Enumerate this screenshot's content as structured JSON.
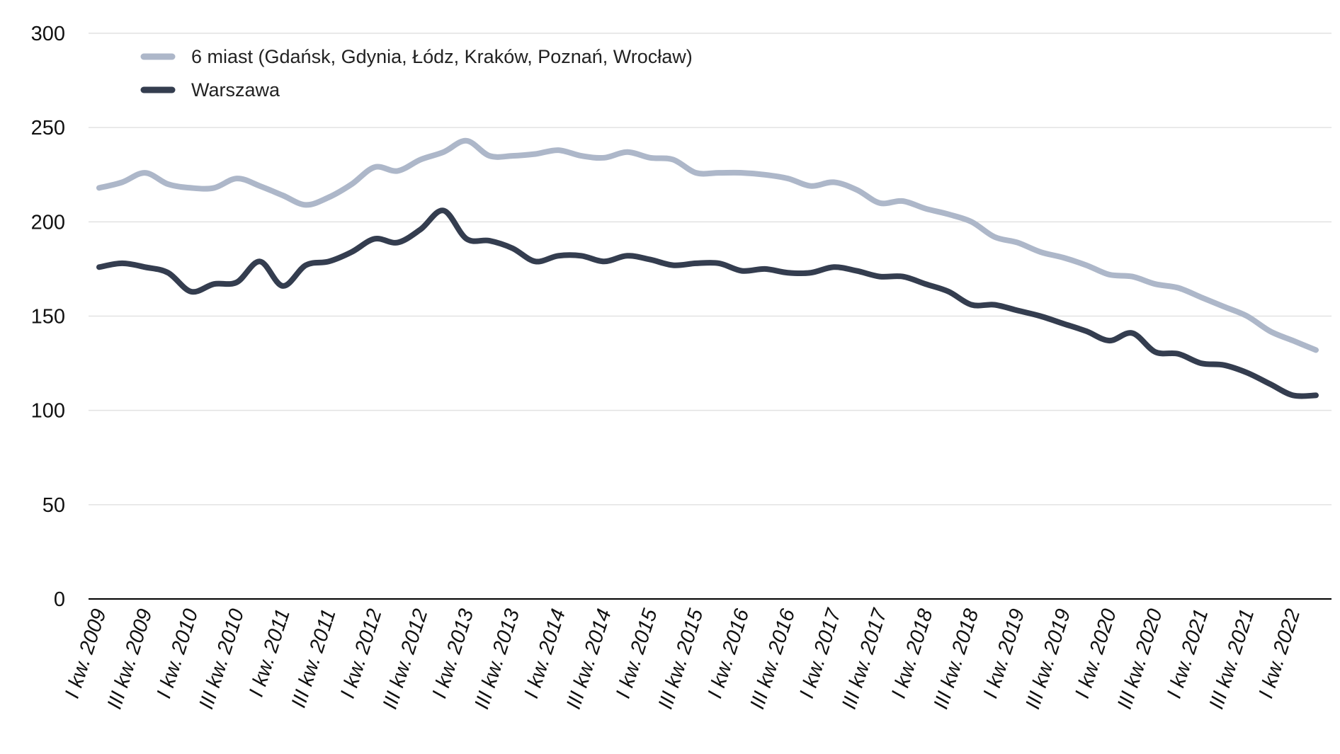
{
  "chart_data": {
    "type": "line",
    "title": "",
    "xlabel": "",
    "ylabel": "",
    "ylim": [
      0,
      300
    ],
    "yticks": [
      0,
      50,
      100,
      150,
      200,
      250,
      300
    ],
    "grid": true,
    "legend_position": "top-left",
    "x": [
      "I kw. 2009",
      "II kw. 2009",
      "III kw. 2009",
      "IV kw. 2009",
      "I kw. 2010",
      "II kw. 2010",
      "III kw. 2010",
      "IV kw. 2010",
      "I kw. 2011",
      "II kw. 2011",
      "III kw. 2011",
      "IV kw. 2011",
      "I kw. 2012",
      "II kw. 2012",
      "III kw. 2012",
      "IV kw. 2012",
      "I kw. 2013",
      "II kw. 2013",
      "III kw. 2013",
      "IV kw. 2013",
      "I kw. 2014",
      "II kw. 2014",
      "III kw. 2014",
      "IV kw. 2014",
      "I kw. 2015",
      "II kw. 2015",
      "III kw. 2015",
      "IV kw. 2015",
      "I kw. 2016",
      "II kw. 2016",
      "III kw. 2016",
      "IV kw. 2016",
      "I kw. 2017",
      "II kw. 2017",
      "III kw. 2017",
      "IV kw. 2017",
      "I kw. 2018",
      "II kw. 2018",
      "III kw. 2018",
      "IV kw. 2018",
      "I kw. 2019",
      "II kw. 2019",
      "III kw. 2019",
      "IV kw. 2019",
      "I kw. 2020",
      "II kw. 2020",
      "III kw. 2020",
      "IV kw. 2020",
      "I kw. 2021",
      "II kw. 2021",
      "III kw. 2021",
      "IV kw. 2021",
      "I kw. 2022",
      "II kw. 2022"
    ],
    "tick_labels": [
      "I kw. 2009",
      "III kw. 2009",
      "I kw. 2010",
      "III kw. 2010",
      "I kw. 2011",
      "III kw. 2011",
      "I kw. 2012",
      "III kw. 2012",
      "I kw. 2013",
      "III kw. 2013",
      "I kw. 2014",
      "III kw. 2014",
      "I kw. 2015",
      "III kw. 2015",
      "I kw. 2016",
      "III kw. 2016",
      "I kw. 2017",
      "III kw. 2017",
      "I kw. 2018",
      "III kw. 2018",
      "I kw. 2019",
      "III kw. 2019",
      "I kw. 2020",
      "III kw. 2020",
      "I kw. 2021",
      "III kw. 2021",
      "I kw. 2022"
    ],
    "series": [
      {
        "name": "6 miast (Gdańsk, Gdynia, Łódz, Kraków, Poznań, Wrocław)",
        "color": "#adb7c9",
        "values": [
          218,
          221,
          226,
          220,
          218,
          218,
          223,
          219,
          214,
          209,
          213,
          220,
          229,
          227,
          233,
          237,
          243,
          235,
          235,
          236,
          238,
          235,
          234,
          237,
          234,
          233,
          226,
          226,
          226,
          225,
          223,
          219,
          221,
          217,
          210,
          211,
          207,
          204,
          200,
          192,
          189,
          184,
          181,
          177,
          172,
          171,
          167,
          165,
          160,
          155,
          150,
          142,
          137,
          132
        ]
      },
      {
        "name": "Warszawa",
        "color": "#343d4f",
        "values": [
          176,
          178,
          176,
          173,
          163,
          167,
          168,
          179,
          166,
          177,
          179,
          184,
          191,
          189,
          196,
          206,
          191,
          190,
          186,
          179,
          182,
          182,
          179,
          182,
          180,
          177,
          178,
          178,
          174,
          175,
          173,
          173,
          176,
          174,
          171,
          171,
          167,
          163,
          156,
          156,
          153,
          150,
          146,
          142,
          137,
          141,
          131,
          130,
          125,
          124,
          120,
          114,
          108,
          108
        ]
      }
    ]
  }
}
